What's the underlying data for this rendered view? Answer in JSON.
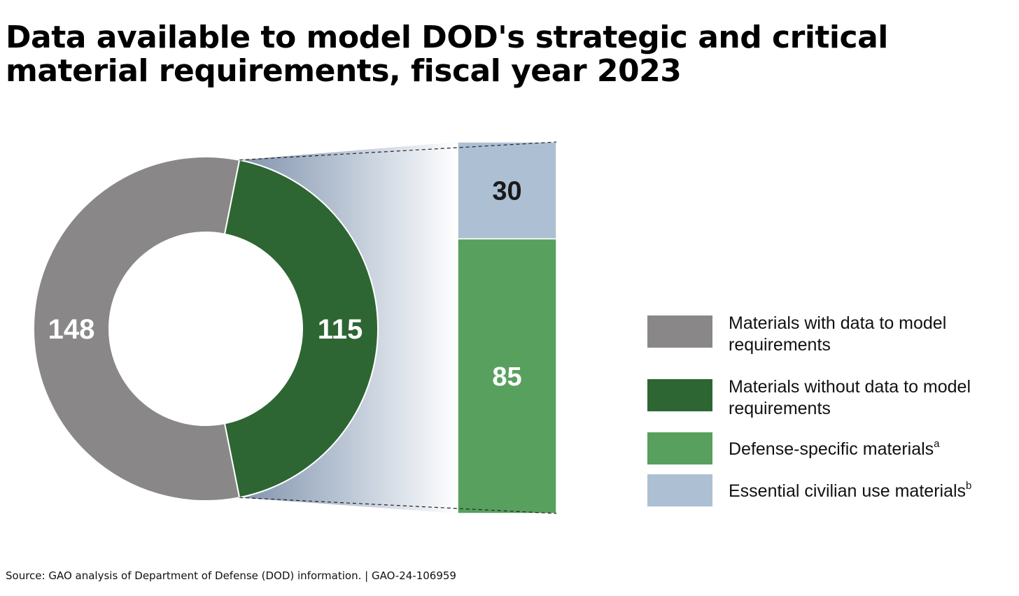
{
  "title_line1": "Data available to model DOD's strategic and critical",
  "title_line2": "material requirements, fiscal year 2023",
  "source": "Source: GAO analysis of Department of Defense (DOD) information. | GAO-24-106959",
  "chart_data": {
    "type": "pie",
    "donut": {
      "slices": [
        {
          "label": "Materials with data to model requirements",
          "value": 148,
          "value_label": "148",
          "color": "#898787"
        },
        {
          "label": "Materials without data to model requirements",
          "value": 115,
          "value_label": "115",
          "color": "#2d6632"
        }
      ]
    },
    "breakdown_bar": {
      "of_slice": "Materials without data to model requirements",
      "segments": [
        {
          "label": "Essential civilian use materials",
          "value": 30,
          "value_label": "30",
          "color": "#adbfd3",
          "text_color": "#1a1a1a"
        },
        {
          "label": "Defense-specific materials",
          "value": 85,
          "value_label": "85",
          "color": "#58a05e",
          "text_color": "#ffffff"
        }
      ]
    },
    "legend": {
      "placement": "right",
      "entries": [
        {
          "line1": "Materials with data to model",
          "line2": "requirements",
          "sup": "",
          "color": "#898787"
        },
        {
          "line1": "Materials without data to model",
          "line2": "requirements",
          "sup": "",
          "color": "#2d6632"
        },
        {
          "line1": "Defense-specific materials",
          "line2": "",
          "sup": "a",
          "color": "#58a05e"
        },
        {
          "line1": "Essential civilian use materials",
          "line2": "",
          "sup": "b",
          "color": "#adbfd3"
        }
      ]
    }
  }
}
